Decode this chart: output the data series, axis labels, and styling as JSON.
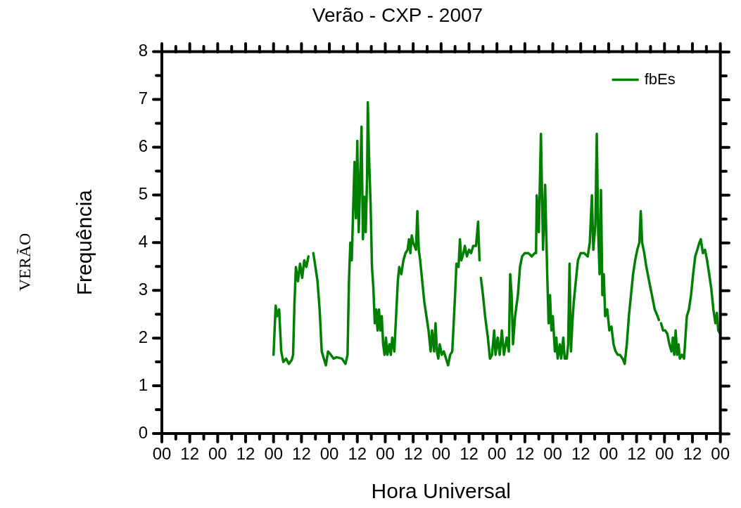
{
  "chart_data": {
    "type": "line",
    "title": "Verão - CXP - 2007",
    "xlabel": "Hora Universal",
    "ylabel": "Frequência",
    "annotations": [
      "VERÃO"
    ],
    "legend": "top right",
    "marker": "none",
    "line_style": "solid",
    "xlim": [
      0,
      240
    ],
    "ylim": [
      0,
      8
    ],
    "xticks": [
      {
        "value": 0,
        "label": "00"
      },
      {
        "value": 6,
        "label": null
      },
      {
        "value": 12,
        "label": "12"
      },
      {
        "value": 18,
        "label": null
      },
      {
        "value": 24,
        "label": "00"
      },
      {
        "value": 30,
        "label": null
      },
      {
        "value": 36,
        "label": "12"
      },
      {
        "value": 42,
        "label": null
      },
      {
        "value": 48,
        "label": "00"
      },
      {
        "value": 54,
        "label": null
      },
      {
        "value": 60,
        "label": "12"
      },
      {
        "value": 66,
        "label": null
      },
      {
        "value": 72,
        "label": "00"
      },
      {
        "value": 78,
        "label": null
      },
      {
        "value": 84,
        "label": "12"
      },
      {
        "value": 90,
        "label": null
      },
      {
        "value": 96,
        "label": "00"
      },
      {
        "value": 102,
        "label": null
      },
      {
        "value": 108,
        "label": "12"
      },
      {
        "value": 114,
        "label": null
      },
      {
        "value": 120,
        "label": "00"
      },
      {
        "value": 126,
        "label": null
      },
      {
        "value": 132,
        "label": "12"
      },
      {
        "value": 138,
        "label": null
      },
      {
        "value": 144,
        "label": "00"
      },
      {
        "value": 150,
        "label": null
      },
      {
        "value": 156,
        "label": "12"
      },
      {
        "value": 162,
        "label": null
      },
      {
        "value": 168,
        "label": "00"
      },
      {
        "value": 174,
        "label": null
      },
      {
        "value": 180,
        "label": "12"
      },
      {
        "value": 186,
        "label": null
      },
      {
        "value": 192,
        "label": "00"
      },
      {
        "value": 198,
        "label": null
      },
      {
        "value": 204,
        "label": "12"
      },
      {
        "value": 210,
        "label": null
      },
      {
        "value": 216,
        "label": "00"
      },
      {
        "value": 222,
        "label": null
      },
      {
        "value": 228,
        "label": "12"
      },
      {
        "value": 234,
        "label": null
      },
      {
        "value": 240,
        "label": "00"
      }
    ],
    "yticks": [
      0,
      {
        "value": 0.5,
        "label": null
      },
      1,
      {
        "value": 1.5,
        "label": null
      },
      2,
      {
        "value": 2.5,
        "label": null
      },
      3,
      {
        "value": 3.5,
        "label": null
      },
      4,
      {
        "value": 4.5,
        "label": null
      },
      5,
      {
        "value": 5.5,
        "label": null
      },
      6,
      {
        "value": 6.5,
        "label": null
      },
      7,
      {
        "value": 7.5,
        "label": null
      },
      8
    ],
    "series": [
      {
        "name": "fbEs",
        "color": "#008000",
        "x": [
          48,
          48.9,
          49.5,
          50.4,
          51.3,
          52.2,
          53.4,
          54.6,
          55.8,
          56.4,
          57,
          57.6,
          58.5,
          59.4,
          60.3,
          61.2,
          62.1,
          63,
          63.9,
          65.1,
          66,
          66.9,
          67.8,
          68.7,
          69.6,
          70.5,
          71.4,
          72.6,
          73.8,
          75,
          77.4,
          78.9,
          79.8,
          80.4,
          81,
          81.6,
          82.2,
          82.8,
          83.4,
          84,
          84.6,
          85.2,
          85.8,
          86.4,
          87,
          87.6,
          88.2,
          88.5,
          89.1,
          89.7,
          90.3,
          90.9,
          91.5,
          92.1,
          92.7,
          93.3,
          93.9,
          94.5,
          95.1,
          95.7,
          96.3,
          96.9,
          97.8,
          98.4,
          99,
          99.9,
          100.8,
          101.4,
          102,
          102.9,
          103.8,
          104.7,
          105.6,
          106.2,
          106.8,
          107.4,
          108,
          109.2,
          109.8,
          110.4,
          111,
          111.9,
          112.8,
          113.7,
          114.6,
          115.5,
          116.1,
          117,
          117.6,
          118.2,
          118.8,
          119.4,
          120.3,
          121.2,
          122.1,
          123,
          123.9,
          124.8,
          126,
          126.6,
          127.5,
          128.1,
          128.7,
          129.6,
          130.2,
          131.1,
          132,
          132.9,
          133.8,
          135,
          135.9,
          136.5,
          136.8,
          137.1,
          138,
          138.9,
          140.1,
          141,
          141.9,
          142.8,
          143.4,
          144.3,
          145.2,
          146.1,
          147,
          148.2,
          149.1,
          149.7,
          150.3,
          150.9,
          151.8,
          153,
          153.9,
          154.8,
          156,
          157.5,
          159,
          160.2,
          160.8,
          161.1,
          162,
          162.9,
          163.8,
          164.7,
          165.6,
          166.2,
          166.8,
          167.4,
          168,
          168.9,
          169.5,
          170.1,
          171,
          171.6,
          172.5,
          173.1,
          174,
          174.6,
          175.2,
          175.8,
          176.4,
          177,
          177.9,
          178.8,
          180,
          181.5,
          183,
          183.9,
          184.8,
          185.4,
          186.3,
          186.9,
          187.5,
          188.1,
          188.7,
          189.3,
          189.9,
          190.5,
          191.4,
          192.3,
          193.2,
          194.1,
          195,
          195.9,
          196.8,
          198,
          198.9,
          199.8,
          200.7,
          201.6,
          202.5,
          203.4,
          204.3,
          205.2,
          205.8,
          206.4,
          207.3,
          208.2,
          209.4,
          210.6,
          211.8,
          213,
          213.6,
          213.9,
          214.5,
          215.4,
          216.3,
          217.2,
          218.1,
          219,
          219.6,
          220.2,
          220.8,
          221.4,
          222,
          222.6,
          223.5,
          224.4,
          225.6,
          226.5,
          227.4,
          228.3,
          229.2,
          230.1,
          231,
          231.6,
          232.5,
          233.4,
          234.3,
          235.2,
          236.1,
          237,
          237.9,
          238.5,
          239.1,
          240
        ],
        "values": [
          1.65,
          2.68,
          2.46,
          2.6,
          1.72,
          1.5,
          1.57,
          1.46,
          1.54,
          1.65,
          2.75,
          3.49,
          3.19,
          3.56,
          3.26,
          3.63,
          3.49,
          3.71,
          null,
          3.78,
          3.49,
          3.19,
          2.6,
          1.72,
          1.57,
          1.43,
          1.72,
          1.65,
          1.57,
          1.6,
          1.57,
          1.46,
          1.65,
          3.19,
          4,
          3.63,
          4.66,
          5.69,
          4.51,
          6.13,
          4.22,
          5.25,
          6.43,
          4.07,
          4.96,
          4.22,
          5.4,
          6.94,
          5.69,
          4.81,
          3.49,
          3.04,
          2.31,
          2.6,
          2.16,
          2.6,
          2.16,
          2.46,
          1.87,
          1.65,
          2.01,
          1.65,
          1.87,
          1.65,
          2.01,
          1.72,
          2.6,
          3.19,
          3.49,
          3.34,
          3.63,
          3.78,
          3.85,
          4.07,
          3.78,
          4.15,
          4,
          3.85,
          4.66,
          3.85,
          3.63,
          3.19,
          2.75,
          2.46,
          2.16,
          1.72,
          2.16,
          1.72,
          2.31,
          1.72,
          1.57,
          1.87,
          1.65,
          1.72,
          1.57,
          1.43,
          1.65,
          1.72,
          2.9,
          3.56,
          3.49,
          4.07,
          3.63,
          3.78,
          3.93,
          3.71,
          3.85,
          3.78,
          3.93,
          3.93,
          4.44,
          3.63,
          null,
          3.26,
          2.9,
          2.46,
          2.01,
          1.57,
          1.65,
          2.16,
          1.65,
          2.01,
          1.65,
          2.16,
          1.65,
          2.01,
          1.72,
          3.34,
          2.9,
          1.87,
          2.46,
          2.9,
          3.49,
          3.71,
          3.78,
          3.78,
          3.71,
          3.78,
          3.78,
          4.99,
          4.22,
          6.28,
          3.85,
          5.21,
          3.34,
          2.31,
          2.9,
          2.16,
          2.46,
          1.72,
          2.01,
          1.57,
          1.87,
          1.57,
          2.01,
          1.57,
          1.57,
          1.87,
          3.56,
          1.72,
          2.31,
          2.75,
          3.19,
          3.63,
          3.78,
          3.78,
          3.71,
          4,
          4.99,
          3.85,
          4.37,
          6.28,
          4.22,
          3.34,
          5.1,
          2.9,
          3.34,
          2.46,
          2.6,
          2.16,
          2.24,
          1.87,
          1.72,
          1.65,
          1.65,
          1.57,
          1.46,
          1.87,
          2.46,
          2.9,
          3.34,
          3.63,
          3.85,
          4,
          4.66,
          4,
          3.78,
          3.49,
          3.19,
          2.9,
          2.6,
          2.46,
          2.38,
          null,
          2.31,
          2.16,
          2.16,
          2.09,
          1.87,
          1.72,
          2.01,
          1.65,
          2.16,
          1.65,
          1.87,
          1.57,
          1.65,
          1.57,
          2.46,
          2.6,
          2.9,
          3.34,
          3.71,
          3.85,
          4,
          4.07,
          3.78,
          3.85,
          3.63,
          3.34,
          3.04,
          2.6,
          2.31,
          2.53,
          2.16,
          2.09
        ]
      }
    ]
  }
}
